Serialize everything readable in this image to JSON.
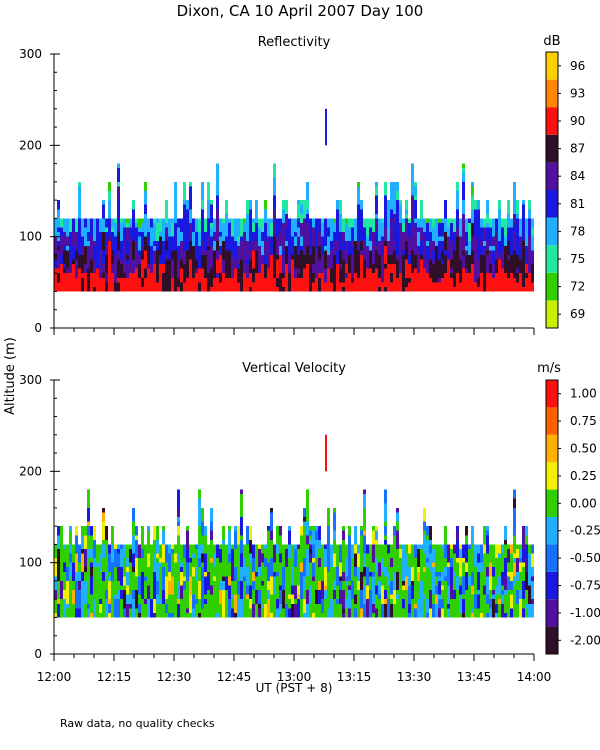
{
  "title": "Dixon, CA 10 April 2007  Day 100",
  "y_axis_label": "Altitude (m)",
  "x_axis_label": "UT  (PST + 8)",
  "footnote": "Raw data, no quality checks",
  "x_ticks": [
    "12:00",
    "12:15",
    "12:30",
    "12:45",
    "13:00",
    "13:15",
    "13:30",
    "13:45",
    "14:00"
  ],
  "y_ticks": [
    "0",
    "100",
    "200",
    "300"
  ],
  "chart_data": [
    {
      "type": "heatmap",
      "title": "Reflectivity",
      "colorbar_unit": "dB",
      "colorbar_labels": [
        "69",
        "72",
        "75",
        "78",
        "81",
        "84",
        "87",
        "90",
        "93",
        "96"
      ],
      "colorbar_colors": [
        "#c8f000",
        "#30d000",
        "#20e8a0",
        "#20b0ff",
        "#1818e0",
        "#5010a0",
        "#301028",
        "#ff1010",
        "#ff8800",
        "#ffd000"
      ],
      "x_range": [
        "12:00",
        "14:00"
      ],
      "ylim": [
        0,
        300
      ],
      "echo_bottom_m": 40,
      "echo_top_m": [
        140,
        180
      ],
      "isolated_echo": {
        "time": "13:08",
        "altitude_m": [
          200,
          240
        ],
        "value_dB": 81
      }
    },
    {
      "type": "heatmap",
      "title": "Vertical Velocity",
      "colorbar_unit": "m/s",
      "colorbar_labels": [
        "-2.00",
        "-1.00",
        "-0.75",
        "-0.50",
        "-0.25",
        "0.00",
        "0.25",
        "0.50",
        "0.75",
        "1.00"
      ],
      "colorbar_colors": [
        "#301028",
        "#5010a0",
        "#1818e0",
        "#1870ff",
        "#20b0ff",
        "#30d000",
        "#f0f000",
        "#ffb000",
        "#ff6000",
        "#ff1010"
      ],
      "x_range": [
        "12:00",
        "14:00"
      ],
      "ylim": [
        0,
        300
      ],
      "echo_bottom_m": 40,
      "echo_top_m": [
        140,
        180
      ],
      "isolated_echo": {
        "time": "13:08",
        "altitude_m": [
          200,
          240
        ],
        "value_ms": 1.0
      }
    }
  ]
}
